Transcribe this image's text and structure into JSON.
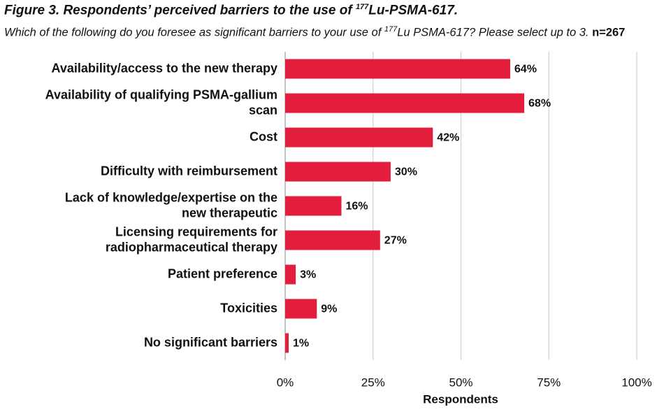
{
  "chart_data": {
    "type": "barh",
    "title": {
      "before": "Figure 3. Respondents’ perceived barriers to the use of ",
      "superscript": "177",
      "after": "Lu-PSMA-617."
    },
    "subtitle": {
      "before": "Which of the following do you foresee as significant barriers to your use of ",
      "superscript": "177",
      "after": "Lu PSMA-617? Please select up to 3.",
      "note": "n=267"
    },
    "categories": [
      [
        "Availability/access to the new therapy"
      ],
      [
        "Availability of qualifying PSMA-gallium",
        "scan"
      ],
      [
        "Cost"
      ],
      [
        "Difficulty with reimbursement"
      ],
      [
        "Lack of knowledge/expertise on the",
        "new therapeutic"
      ],
      [
        "Licensing requirements for",
        "radiopharmaceutical therapy"
      ],
      [
        "Patient preference"
      ],
      [
        "Toxicities"
      ],
      [
        "No significant barriers"
      ]
    ],
    "values": [
      64,
      68,
      42,
      30,
      16,
      27,
      3,
      9,
      1
    ],
    "value_labels": [
      "64%",
      "68%",
      "42%",
      "30%",
      "16%",
      "27%",
      "3%",
      "9%",
      "1%"
    ],
    "color": "#e31d3c",
    "xlim": [
      0,
      100
    ],
    "xticks": [
      {
        "value": 0,
        "label": "0%"
      },
      {
        "value": 25,
        "label": "25%"
      },
      {
        "value": 50,
        "label": "50%"
      },
      {
        "value": 75,
        "label": "75%"
      },
      {
        "value": 100,
        "label": "100%"
      }
    ],
    "xlabel": "Respondents",
    "grid": true
  }
}
